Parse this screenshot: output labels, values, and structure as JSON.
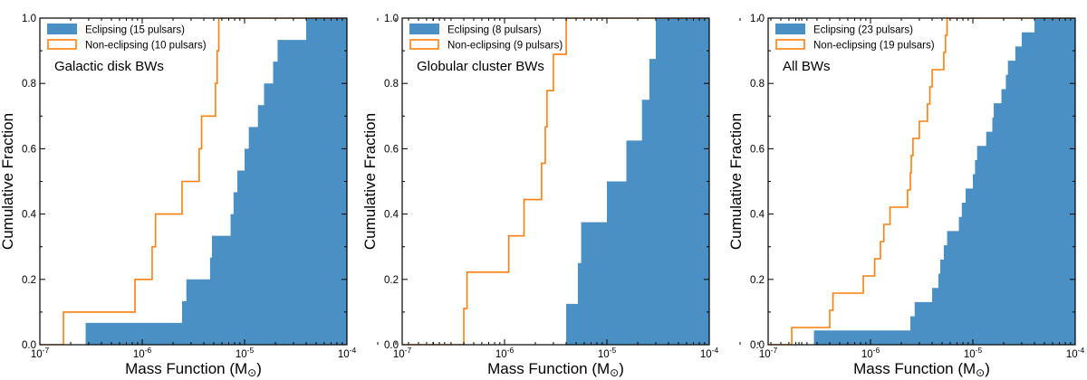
{
  "figure": {
    "xlabel": "Mass Function (M",
    "xlabel_unit_symbol": "⊙",
    "xlabel_close": ")",
    "ylabel": "Cumulative Fraction",
    "colors": {
      "eclipsing": "#4a90c4",
      "non_eclipsing": "#ff7f0e"
    }
  },
  "chart_data": [
    {
      "type": "step-cdf",
      "title": "Galactic disk BWs",
      "xscale": "log",
      "xlim": [
        1e-07,
        0.0001
      ],
      "ylim": [
        0,
        1.0
      ],
      "xticks": [
        1e-07,
        1e-06,
        1e-05,
        0.0001
      ],
      "xtick_labels": [
        "10-7",
        "10-6",
        "10-5",
        "10-4"
      ],
      "yticks": [
        0.0,
        0.2,
        0.4,
        0.6,
        0.8,
        1.0
      ],
      "ytick_labels": [
        "0.0",
        "0.2",
        "0.4",
        "0.6",
        "0.8",
        "1.0"
      ],
      "legend_position": "top-left",
      "series": [
        {
          "name": "Eclipsing",
          "label": "Eclipsing (15 pulsars)",
          "style": "filled",
          "x": [
            2.8e-07,
            2.45e-06,
            2.7e-06,
            4.6e-06,
            4.8e-06,
            7.3e-06,
            7.8e-06,
            8.5e-06,
            1e-05,
            1.1e-05,
            1.35e-05,
            1.55e-05,
            1.9e-05,
            2.1e-05,
            4e-05
          ]
        },
        {
          "name": "Non-eclipsing",
          "label": "Non-eclipsing (10 pulsars)",
          "style": "step",
          "x": [
            1.7e-07,
            8.5e-07,
            1.25e-06,
            1.35e-06,
            2.45e-06,
            3.6e-06,
            3.8e-06,
            5.2e-06,
            5.4e-06,
            5.6e-06
          ]
        }
      ]
    },
    {
      "type": "step-cdf",
      "title": "Globular cluster BWs",
      "xscale": "log",
      "xlim": [
        1e-07,
        0.0001
      ],
      "ylim": [
        0,
        1.0
      ],
      "xticks": [
        1e-07,
        1e-06,
        1e-05,
        0.0001
      ],
      "xtick_labels": [
        "10-7",
        "10-6",
        "10-5",
        "10-4"
      ],
      "yticks": [
        0.0,
        0.2,
        0.4,
        0.6,
        0.8,
        1.0
      ],
      "ytick_labels": [
        "0.0",
        "0.2",
        "0.4",
        "0.6",
        "0.8",
        "1.0"
      ],
      "legend_position": "top-left",
      "series": [
        {
          "name": "Eclipsing",
          "label": "Eclipsing (8 pulsars)",
          "style": "filled",
          "x": [
            4e-06,
            5.2e-06,
            5.6e-06,
            1e-05,
            1.55e-05,
            2.2e-05,
            2.6e-05,
            3e-05
          ]
        },
        {
          "name": "Non-eclipsing",
          "label": "Non-eclipsing (9 pulsars)",
          "style": "step",
          "x": [
            4e-07,
            4.3e-07,
            1.1e-06,
            1.55e-06,
            2.3e-06,
            2.5e-06,
            2.6e-06,
            3e-06,
            4e-06
          ]
        }
      ]
    },
    {
      "type": "step-cdf",
      "title": "All BWs",
      "xscale": "log",
      "xlim": [
        1e-07,
        0.0001
      ],
      "ylim": [
        0,
        1.0
      ],
      "xticks": [
        1e-07,
        1e-06,
        1e-05,
        0.0001
      ],
      "xtick_labels": [
        "10-7",
        "10-6",
        "10-5",
        "10-4"
      ],
      "yticks": [
        0.0,
        0.2,
        0.4,
        0.6,
        0.8,
        1.0
      ],
      "ytick_labels": [
        "0.0",
        "0.2",
        "0.4",
        "0.6",
        "0.8",
        "1.0"
      ],
      "legend_position": "top-left",
      "series": [
        {
          "name": "Eclipsing",
          "label": "Eclipsing (23 pulsars)",
          "style": "filled",
          "x": [
            2.8e-07,
            2.45e-06,
            2.7e-06,
            4e-06,
            4.6e-06,
            4.8e-06,
            5.2e-06,
            5.6e-06,
            7.3e-06,
            7.8e-06,
            8.5e-06,
            1e-05,
            1.05e-05,
            1.1e-05,
            1.35e-05,
            1.55e-05,
            1.6e-05,
            1.9e-05,
            2.1e-05,
            2.2e-05,
            2.6e-05,
            3e-05,
            4e-05
          ]
        },
        {
          "name": "Non-eclipsing",
          "label": "Non-eclipsing (19 pulsars)",
          "style": "step",
          "x": [
            1.7e-07,
            4e-07,
            4.3e-07,
            8.5e-07,
            1.1e-06,
            1.25e-06,
            1.35e-06,
            1.55e-06,
            2.3e-06,
            2.45e-06,
            2.5e-06,
            2.6e-06,
            3e-06,
            3.6e-06,
            3.8e-06,
            4e-06,
            5.2e-06,
            5.4e-06,
            5.6e-06
          ]
        }
      ]
    }
  ]
}
